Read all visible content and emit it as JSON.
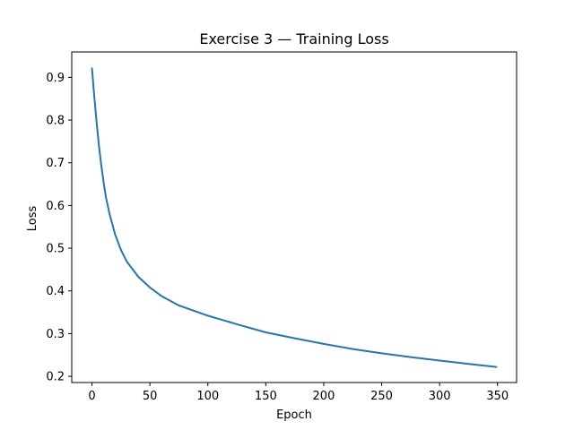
{
  "chart_data": {
    "type": "line",
    "title": "Exercise 3 — Training Loss",
    "xlabel": "Epoch",
    "ylabel": "Loss",
    "xlim": [
      -17.45,
      366.45
    ],
    "ylim": [
      0.1855,
      0.9595
    ],
    "grid": false,
    "x_ticks": [
      0,
      50,
      100,
      150,
      200,
      250,
      300,
      350
    ],
    "x_tick_labels": [
      "0",
      "50",
      "100",
      "150",
      "200",
      "250",
      "300",
      "350"
    ],
    "y_ticks": [
      0.2,
      0.3,
      0.4,
      0.5,
      0.6,
      0.7,
      0.8,
      0.9
    ],
    "y_tick_labels": [
      "0.2",
      "0.3",
      "0.4",
      "0.5",
      "0.6",
      "0.7",
      "0.8",
      "0.9"
    ],
    "colors": {
      "series": "#1f77b4",
      "axes": "#000000",
      "background": "#ffffff"
    },
    "series": [
      {
        "name": "Training Loss",
        "x": [
          0,
          2,
          4,
          6,
          8,
          10,
          12,
          15,
          20,
          25,
          30,
          40,
          50,
          60,
          75,
          100,
          125,
          150,
          175,
          200,
          225,
          250,
          275,
          300,
          325,
          349
        ],
        "y": [
          0.921,
          0.855,
          0.795,
          0.74,
          0.695,
          0.655,
          0.62,
          0.582,
          0.532,
          0.496,
          0.469,
          0.433,
          0.408,
          0.388,
          0.366,
          0.342,
          0.322,
          0.303,
          0.289,
          0.276,
          0.264,
          0.254,
          0.245,
          0.237,
          0.229,
          0.222
        ]
      }
    ]
  }
}
